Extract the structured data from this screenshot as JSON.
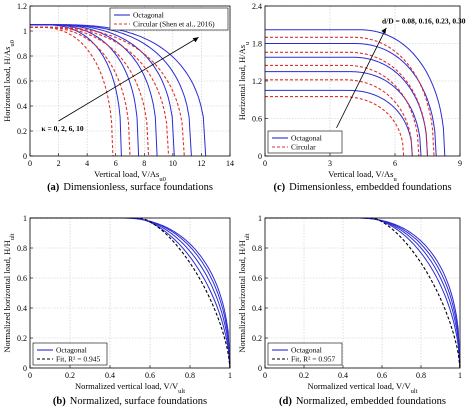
{
  "panels": [
    {
      "caption_letter": "(a)",
      "caption_text": "Dimensionless, surface foundations",
      "xlabel": "Vertical load,  V/As",
      "xlabel_sub": "u0",
      "ylabel": "Horizontal load,  H/As",
      "ylabel_sub": "u0",
      "xlim": [
        0,
        14
      ],
      "ylim": [
        0,
        1.2
      ],
      "xticks": [
        "0",
        "2",
        "4",
        "6",
        "8",
        "10",
        "12",
        "14"
      ],
      "yticks": [
        "0",
        "0.2",
        "0.4",
        "0.6",
        "0.8",
        "1",
        "1.2"
      ],
      "legend": [
        {
          "label": "Octagonal",
          "color": "#2b2bd6",
          "dash": false
        },
        {
          "label": "Circular (Shen et al., 2016)",
          "color": "#e0302c",
          "dash": true
        }
      ],
      "annotation": "κ = 0, 2, 6, 10"
    },
    {
      "caption_letter": "(c)",
      "caption_text": "Dimensionless, embedded foundations",
      "xlabel": "Vertical load,  V/As",
      "xlabel_sub": "u",
      "ylabel": "Horizontal load,  H/As",
      "ylabel_sub": "u",
      "xlim": [
        0,
        9
      ],
      "ylim": [
        0,
        2.4
      ],
      "xticks": [
        "0",
        "3",
        "6",
        "9"
      ],
      "yticks": [
        "0",
        "0.6",
        "1.2",
        "1.8",
        "2.4"
      ],
      "legend": [
        {
          "label": "Octagonal",
          "color": "#2b2bd6",
          "dash": false
        },
        {
          "label": "Circular",
          "color": "#e0302c",
          "dash": true
        }
      ],
      "annotation": "d/D = 0.08, 0.16, 0.23, 0.30"
    },
    {
      "caption_letter": "(b)",
      "caption_text": "Normalized, surface foundations",
      "xlabel": "Normalized vertical load,  V/V",
      "xlabel_sub": "ult",
      "ylabel": "Normalized horizontal load,  H/H",
      "ylabel_sub": "ult",
      "xlim": [
        0,
        1
      ],
      "ylim": [
        0,
        1
      ],
      "xticks": [
        "0",
        "0.2",
        "0.4",
        "0.6",
        "0.8",
        "1"
      ],
      "yticks": [
        "0",
        "0.2",
        "0.4",
        "0.6",
        "0.8",
        "1"
      ],
      "legend": [
        {
          "label": "Octagonal",
          "color": "#2b2bd6",
          "dash": false
        },
        {
          "label": "Fit, R² = 0.945",
          "color": "#000000",
          "dash": true
        }
      ],
      "annotation": ""
    },
    {
      "caption_letter": "(d)",
      "caption_text": "Normalized, embedded foundations",
      "xlabel": "Normalized vertical load,  V/V",
      "xlabel_sub": "ult",
      "ylabel": "Normalized horizontal load,  H/H",
      "ylabel_sub": "ult",
      "xlim": [
        0,
        1
      ],
      "ylim": [
        0,
        1
      ],
      "xticks": [
        "0",
        "0.2",
        "0.4",
        "0.6",
        "0.8",
        "1"
      ],
      "yticks": [
        "0",
        "0.2",
        "0.4",
        "0.6",
        "0.8",
        "1"
      ],
      "legend": [
        {
          "label": "Octagonal",
          "color": "#2b2bd6",
          "dash": false
        },
        {
          "label": "Fit, R² = 0.957",
          "color": "#000000",
          "dash": true
        }
      ],
      "annotation": ""
    }
  ],
  "chart_data": [
    {
      "type": "line",
      "xlim": [
        0,
        14
      ],
      "ylim": [
        0,
        1.2
      ],
      "series": [
        {
          "name": "Octagonal",
          "color": "#2b2bd6",
          "curves": [
            {
              "h0": 1.05,
              "vmax": 6.4,
              "vknee": 0.8,
              "p": 2.6
            },
            {
              "h0": 1.05,
              "vmax": 7.6,
              "vknee": 1.0,
              "p": 2.6
            },
            {
              "h0": 1.05,
              "vmax": 8.9,
              "vknee": 1.2,
              "p": 2.6
            },
            {
              "h0": 1.05,
              "vmax": 10.1,
              "vknee": 1.4,
              "p": 2.6
            },
            {
              "h0": 1.05,
              "vmax": 11.3,
              "vknee": 1.7,
              "p": 2.6
            },
            {
              "h0": 1.05,
              "vmax": 12.3,
              "vknee": 2.0,
              "p": 2.6
            }
          ]
        },
        {
          "name": "Circular (Shen et al., 2016)",
          "color": "#e0302c",
          "curves": [
            {
              "h0": 1.03,
              "vmax": 5.8,
              "vknee": 0.6,
              "p": 2.4
            },
            {
              "h0": 1.03,
              "vmax": 7.0,
              "vknee": 0.8,
              "p": 2.4
            },
            {
              "h0": 1.03,
              "vmax": 8.3,
              "vknee": 1.0,
              "p": 2.4
            },
            {
              "h0": 1.03,
              "vmax": 9.7,
              "vknee": 1.2,
              "p": 2.4
            },
            {
              "h0": 1.03,
              "vmax": 10.8,
              "vknee": 1.4,
              "p": 2.4
            }
          ]
        }
      ]
    },
    {
      "type": "line",
      "xlim": [
        0,
        9
      ],
      "ylim": [
        0,
        2.4
      ],
      "series": [
        {
          "name": "Octagonal",
          "color": "#2b2bd6",
          "curves": [
            {
              "h0": 1.05,
              "vmax": 6.8,
              "vknee": 3.8,
              "p": 2.2
            },
            {
              "h0": 1.35,
              "vmax": 7.2,
              "vknee": 3.9,
              "p": 2.2
            },
            {
              "h0": 1.58,
              "vmax": 7.5,
              "vknee": 4.0,
              "p": 2.2
            },
            {
              "h0": 1.8,
              "vmax": 7.9,
              "vknee": 4.1,
              "p": 2.2
            },
            {
              "h0": 2.02,
              "vmax": 8.3,
              "vknee": 4.3,
              "p": 2.2
            }
          ]
        },
        {
          "name": "Circular",
          "color": "#e0302c",
          "curves": [
            {
              "h0": 0.95,
              "vmax": 6.4,
              "vknee": 3.5,
              "p": 2.2
            },
            {
              "h0": 1.22,
              "vmax": 6.8,
              "vknee": 3.6,
              "p": 2.2
            },
            {
              "h0": 1.45,
              "vmax": 7.1,
              "vknee": 3.7,
              "p": 2.2
            },
            {
              "h0": 1.66,
              "vmax": 7.5,
              "vknee": 3.8,
              "p": 2.2
            },
            {
              "h0": 1.9,
              "vmax": 7.8,
              "vknee": 4.0,
              "p": 2.2
            }
          ]
        }
      ]
    },
    {
      "type": "line",
      "xlim": [
        0,
        1
      ],
      "ylim": [
        0,
        1
      ],
      "series": [
        {
          "name": "Octagonal",
          "color": "#2b2bd6",
          "curves": [
            {
              "h0": 1,
              "vmax": 1,
              "vknee": 0.52,
              "p": 1.7
            },
            {
              "h0": 1,
              "vmax": 1,
              "vknee": 0.5,
              "p": 1.9
            },
            {
              "h0": 1,
              "vmax": 1,
              "vknee": 0.48,
              "p": 2.1
            },
            {
              "h0": 1,
              "vmax": 1,
              "vknee": 0.45,
              "p": 2.3
            }
          ]
        },
        {
          "name": "Fit, R² = 0.945",
          "color": "#000000",
          "curves": [
            {
              "h0": 1,
              "vmax": 1,
              "vknee": 0.55,
              "p": 1.5
            }
          ]
        }
      ]
    },
    {
      "type": "line",
      "xlim": [
        0,
        1
      ],
      "ylim": [
        0,
        1
      ],
      "series": [
        {
          "name": "Octagonal",
          "color": "#2b2bd6",
          "curves": [
            {
              "h0": 1,
              "vmax": 1,
              "vknee": 0.52,
              "p": 1.8
            },
            {
              "h0": 1,
              "vmax": 1,
              "vknee": 0.5,
              "p": 2.0
            },
            {
              "h0": 1,
              "vmax": 1,
              "vknee": 0.48,
              "p": 2.2
            },
            {
              "h0": 1,
              "vmax": 1,
              "vknee": 0.46,
              "p": 2.4
            }
          ]
        },
        {
          "name": "Fit, R² = 0.957",
          "color": "#000000",
          "curves": [
            {
              "h0": 1,
              "vmax": 1,
              "vknee": 0.55,
              "p": 1.5
            }
          ]
        }
      ]
    }
  ]
}
